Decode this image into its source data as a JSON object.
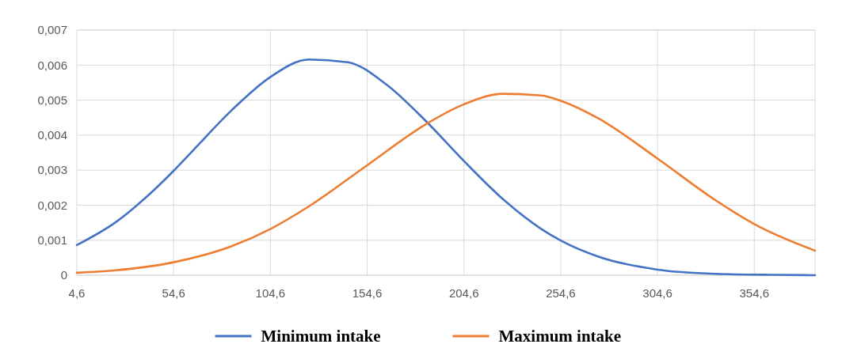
{
  "chart_data": {
    "type": "line",
    "legend": "bottom",
    "grid": true,
    "marker": "none",
    "line_style": "solid",
    "xlim": [
      4.6,
      386
    ],
    "ylim": [
      0,
      0.007
    ],
    "xticks": [
      {
        "value": 4.6,
        "label": "4,6"
      },
      {
        "value": 54.6,
        "label": "54,6"
      },
      {
        "value": 104.6,
        "label": "104,6"
      },
      {
        "value": 154.6,
        "label": "154,6"
      },
      {
        "value": 204.6,
        "label": "204,6"
      },
      {
        "value": 254.6,
        "label": "254,6"
      },
      {
        "value": 304.6,
        "label": "304,6"
      },
      {
        "value": 354.6,
        "label": "354,6"
      }
    ],
    "yticks": [
      0,
      {
        "value": 0.001,
        "label": "0,001"
      },
      {
        "value": 0.002,
        "label": "0,002"
      },
      {
        "value": 0.003,
        "label": "0,003"
      },
      {
        "value": 0.004,
        "label": "0,004"
      },
      {
        "value": 0.005,
        "label": "0,005"
      },
      {
        "value": 0.006,
        "label": "0,006"
      },
      {
        "value": 0.007,
        "label": "0,007"
      }
    ],
    "series": [
      {
        "name": "Minimum intake",
        "color": "#4472c4",
        "x": [
          4.6,
          24.6,
          44.6,
          54.6,
          64.6,
          84.6,
          104.6,
          124.6,
          144.6,
          164.6,
          184.6,
          204.6,
          224.6,
          244.6,
          254.6,
          274.6,
          304.6,
          334.6,
          364.6,
          386
        ],
        "values": [
          0.00086,
          0.00151,
          0.00244,
          0.00298,
          0.00356,
          0.00471,
          0.00566,
          0.00616,
          0.00608,
          0.00544,
          0.00442,
          0.00326,
          0.00218,
          0.00132,
          0.00099,
          0.00052,
          0.00016,
          4e-05,
          1e-05,
          0
        ]
      },
      {
        "name": "Maximum intake",
        "color": "#ed7d31",
        "x": [
          4.6,
          24.6,
          54.6,
          84.6,
          104.6,
          124.6,
          154.6,
          184.6,
          204.6,
          224.6,
          244.6,
          254.6,
          274.6,
          304.6,
          334.6,
          354.6,
          386
        ],
        "values": [
          7e-05,
          0.00014,
          0.00037,
          0.00083,
          0.00132,
          0.00197,
          0.00314,
          0.0043,
          0.00488,
          0.00518,
          0.00513,
          0.00498,
          0.00446,
          0.00333,
          0.00214,
          0.00146,
          0.0007
        ]
      }
    ]
  }
}
